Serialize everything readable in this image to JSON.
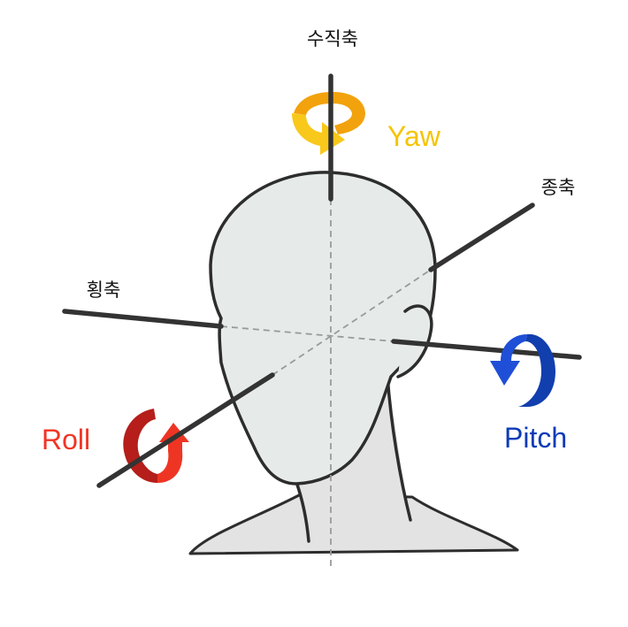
{
  "axes": {
    "vertical": {
      "label": "수직축"
    },
    "transverse": {
      "label": "횡축"
    },
    "longitudinal": {
      "label": "종축"
    }
  },
  "rotations": {
    "yaw": {
      "label": "Yaw",
      "color": "#f5c400",
      "arrow_color": "#f2a20c"
    },
    "roll": {
      "label": "Roll",
      "color": "#f03524",
      "arrow_color": "#b51e1a"
    },
    "pitch": {
      "label": "Pitch",
      "color": "#0a3bb8",
      "arrow_color": "#123fae"
    }
  },
  "colors": {
    "head_fill": "#e6ebea",
    "body_fill": "#e3e3e3",
    "outline": "#2d2d2d",
    "axis_line": "#333333",
    "dashed_line": "#9a9a9a"
  }
}
